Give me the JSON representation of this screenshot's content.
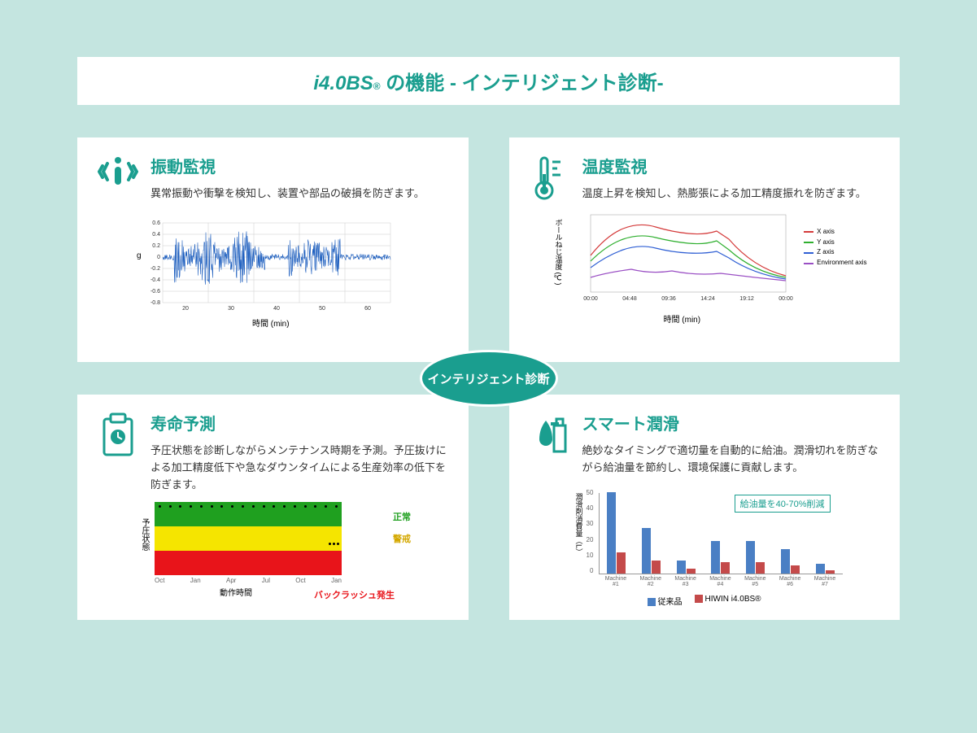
{
  "header": {
    "logo": "i4.0BS",
    "reg": "®",
    "title": " の機能 - インテリジェント診断-"
  },
  "center_badge": "インテリジェント診断",
  "colors": {
    "accent": "#1a9e8f",
    "bg": "#c4e5e0",
    "card_bg": "#ffffff"
  },
  "cards": {
    "vibration": {
      "title": "振動監視",
      "desc": "異常振動や衝撃を検知し、装置や部品の破損を防ぎます。",
      "chart": {
        "type": "line",
        "ylabel": "g",
        "xlabel": "時間 (min)",
        "ylim": [
          -0.8,
          0.6
        ],
        "yticks": [
          -0.8,
          -0.6,
          -0.4,
          -0.2,
          0,
          0.2,
          0.4,
          0.6
        ],
        "xticks": [
          20,
          30,
          40,
          50,
          60
        ],
        "line_color": "#1e5fbf",
        "grid_color": "#cccccc",
        "background_color": "#ffffff"
      }
    },
    "temperature": {
      "title": "温度監視",
      "desc": "温度上昇を検知し、熱膨張による加工精度振れを防ぎます。",
      "chart": {
        "type": "line",
        "ylabel": "ボールねじ温度 (℃)",
        "xlabel": "時間 (min)",
        "xticks": [
          "00:00",
          "04:48",
          "09:36",
          "14:24",
          "19:12",
          "00:00"
        ],
        "series": [
          {
            "name": "X axis",
            "color": "#d43a3a"
          },
          {
            "name": "Y axis",
            "color": "#2faf2f"
          },
          {
            "name": "Z axis",
            "color": "#2f5fd4"
          },
          {
            "name": "Environment axis",
            "color": "#9a4fc4"
          }
        ],
        "background_color": "#ffffff"
      }
    },
    "life": {
      "title": "寿命予測",
      "desc": "予圧状態を診断しながらメンテナンス時期を予測。予圧抜けによる加工精度低下や急なダウンタイムによる生産効率の低下を防ぎます。",
      "chart": {
        "type": "band",
        "ylabel": "予圧状態",
        "xlabel": "動作時間",
        "xticks": [
          "Oct",
          "Jan",
          "Apr",
          "Jul",
          "Oct",
          "Jan"
        ],
        "bands": [
          {
            "label": "正常",
            "color": "#1fa01f"
          },
          {
            "label": "警戒",
            "color": "#d4a800"
          },
          {
            "label": "バックラッシュ発生",
            "color": "#e8141a"
          }
        ],
        "legend": {
          "normal": "正常",
          "warn": "警戒"
        },
        "backlash_label": "バックラッシュ発生",
        "background_color": "#ffffff"
      }
    },
    "lube": {
      "title": "スマート潤滑",
      "desc": "絶妙なタイミングで適切量を自動的に給油。潤滑切れを防ぎながら給油量を節約し、環境保護に貢献します。",
      "chart": {
        "type": "bar",
        "ylabel": "潤滑剤消費量（L）",
        "yticks": [
          0,
          10,
          20,
          30,
          40,
          50
        ],
        "ylim": [
          0,
          50
        ],
        "categories": [
          "Machine #1",
          "Machine #2",
          "Machine #3",
          "Machine #4",
          "Machine #5",
          "Machine #6",
          "Machine #7"
        ],
        "series": [
          {
            "name": "従来品",
            "color": "#4a7fc4",
            "values": [
              50,
              28,
              8,
              20,
              20,
              15,
              6
            ]
          },
          {
            "name": "HIWIN i4.0BS®",
            "color": "#c44a4a",
            "values": [
              13,
              8,
              3,
              7,
              7,
              5,
              2
            ]
          }
        ],
        "callout": "給油量を40-70%削減",
        "legend1": "従来品",
        "legend2": "HIWIN i4.0BS®",
        "background_color": "#ffffff"
      }
    }
  }
}
